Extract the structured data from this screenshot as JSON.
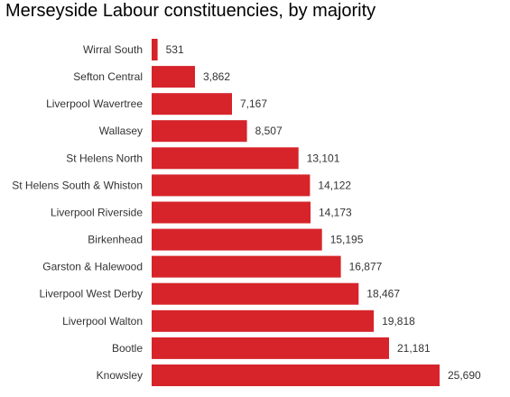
{
  "chart_data": {
    "type": "bar",
    "orientation": "horizontal",
    "title": "Merseyside Labour constituencies, by majority",
    "xlabel": "",
    "ylabel": "",
    "categories": [
      "Wirral South",
      "Sefton Central",
      "Liverpool Wavertree",
      "Wallasey",
      "St Helens North",
      "St Helens South & Whiston",
      "Liverpool Riverside",
      "Birkenhead",
      "Garston & Halewood",
      "Liverpool West Derby",
      "Liverpool Walton",
      "Bootle",
      "Knowsley"
    ],
    "values": [
      531,
      3862,
      7167,
      8507,
      13101,
      14122,
      14173,
      15195,
      16877,
      18467,
      19818,
      21181,
      25690
    ],
    "value_labels": [
      "531",
      "3,862",
      "7,167",
      "8,507",
      "13,101",
      "14,122",
      "14,173",
      "15,195",
      "16,877",
      "18,467",
      "19,818",
      "21,181",
      "25,690"
    ],
    "xlim": [
      0,
      25690
    ],
    "grid": false,
    "legend": "none",
    "bar_color": "#d6242a"
  }
}
